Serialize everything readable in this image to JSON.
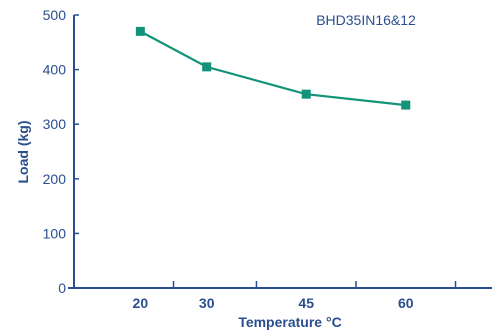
{
  "chart_data": {
    "type": "line",
    "title": "",
    "xlabel": "Temperature °C",
    "ylabel": "Load (kg)",
    "annotation": "BHD35IN16&12",
    "x_ticks": [
      20,
      30,
      45,
      60
    ],
    "y_ticks": [
      0,
      100,
      200,
      300,
      400,
      500
    ],
    "xlim": [
      10,
      73
    ],
    "ylim": [
      0,
      500
    ],
    "grid": false,
    "series": [
      {
        "x": [
          20,
          30,
          45,
          60
        ],
        "values": [
          470,
          405,
          355,
          335
        ],
        "color": "#13937a",
        "marker": "square"
      }
    ],
    "axis_color": "#2b4f8e"
  }
}
